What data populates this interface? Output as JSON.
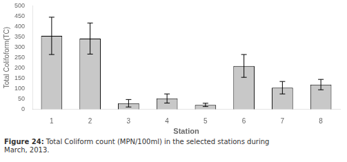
{
  "chart_data": {
    "type": "bar",
    "categories": [
      "1",
      "2",
      "3",
      "4",
      "5",
      "6",
      "7",
      "8"
    ],
    "values": [
      355,
      342,
      30,
      53,
      22,
      210,
      105,
      120
    ],
    "errors": [
      90,
      75,
      18,
      22,
      8,
      55,
      30,
      25
    ],
    "color": "#c8c8c8",
    "x_label": "Station",
    "y_label": "Total Colifoform(TC)",
    "ylim": [
      0,
      500
    ],
    "yticks": [
      0,
      50,
      100,
      150,
      200,
      250,
      300,
      350,
      400,
      450,
      500
    ],
    "annotations": [
      "Figure 24:",
      "Total Coliform count (MPN/100ml) in the selected stations during",
      "March, 2013."
    ],
    "grid": false
  }
}
